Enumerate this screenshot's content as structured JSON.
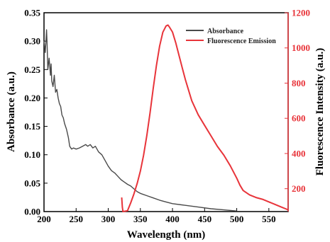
{
  "chart_data": {
    "type": "line",
    "title": "",
    "xlabel": "Wavelength (nm)",
    "ylabel_left": "Absorbance (a.u.)",
    "ylabel_right": "Fluorescence Intensity (a.u.)",
    "xlim": [
      200,
      580
    ],
    "ylim_left": [
      0,
      0.35
    ],
    "ylim_right": [
      70,
      1200
    ],
    "x_ticks": [
      200,
      250,
      300,
      350,
      400,
      450,
      500,
      550
    ],
    "y_left_ticks": [
      0.0,
      0.05,
      0.1,
      0.15,
      0.2,
      0.25,
      0.3,
      0.35
    ],
    "y_left_tick_labels": [
      "0.00",
      "0.05",
      "0.10",
      "0.15",
      "0.20",
      "0.25",
      "0.30",
      "0.35"
    ],
    "y_right_ticks": [
      200,
      400,
      600,
      800,
      1000,
      1200
    ],
    "legend_position": "top-right",
    "colors": {
      "absorbance": "#4a4a4a",
      "fluorescence": "#e8343a",
      "right_axis": "#e8343a",
      "left_axis": "#000000"
    },
    "series": [
      {
        "name": "Absorbance",
        "axis": "left",
        "color": "#4a4a4a",
        "x": [
          200,
          202,
          204,
          205,
          206,
          208,
          210,
          211,
          212,
          214,
          216,
          218,
          220,
          222,
          224,
          226,
          228,
          230,
          232,
          235,
          238,
          240,
          243,
          246,
          250,
          255,
          260,
          265,
          268,
          272,
          276,
          280,
          285,
          290,
          295,
          300,
          305,
          310,
          315,
          320,
          325,
          330,
          335,
          340,
          345,
          350,
          360,
          370,
          380,
          390,
          400,
          420,
          440,
          460,
          480,
          500
        ],
        "y": [
          0.3,
          0.28,
          0.32,
          0.29,
          0.25,
          0.27,
          0.24,
          0.26,
          0.23,
          0.22,
          0.24,
          0.21,
          0.215,
          0.2,
          0.19,
          0.185,
          0.17,
          0.165,
          0.155,
          0.145,
          0.13,
          0.115,
          0.11,
          0.112,
          0.11,
          0.112,
          0.115,
          0.118,
          0.115,
          0.118,
          0.112,
          0.115,
          0.105,
          0.1,
          0.09,
          0.08,
          0.072,
          0.068,
          0.062,
          0.056,
          0.052,
          0.048,
          0.045,
          0.04,
          0.035,
          0.032,
          0.028,
          0.024,
          0.02,
          0.017,
          0.014,
          0.011,
          0.008,
          0.005,
          0.003,
          0.001
        ]
      },
      {
        "name": "Fluorescence Emission",
        "axis": "right",
        "color": "#e8343a",
        "x": [
          321,
          322,
          323,
          330,
          335,
          340,
          345,
          350,
          355,
          360,
          365,
          370,
          375,
          380,
          385,
          390,
          393,
          395,
          400,
          405,
          410,
          415,
          420,
          425,
          430,
          440,
          450,
          460,
          470,
          480,
          490,
          500,
          505,
          510,
          520,
          530,
          540,
          550,
          560,
          570,
          580
        ],
        "y": [
          150,
          95,
          70,
          75,
          120,
          170,
          230,
          300,
          390,
          500,
          630,
          770,
          900,
          1010,
          1090,
          1125,
          1130,
          1120,
          1090,
          1030,
          960,
          890,
          820,
          760,
          700,
          620,
          560,
          500,
          440,
          390,
          330,
          260,
          220,
          190,
          165,
          150,
          140,
          125,
          110,
          95,
          80
        ]
      }
    ]
  }
}
